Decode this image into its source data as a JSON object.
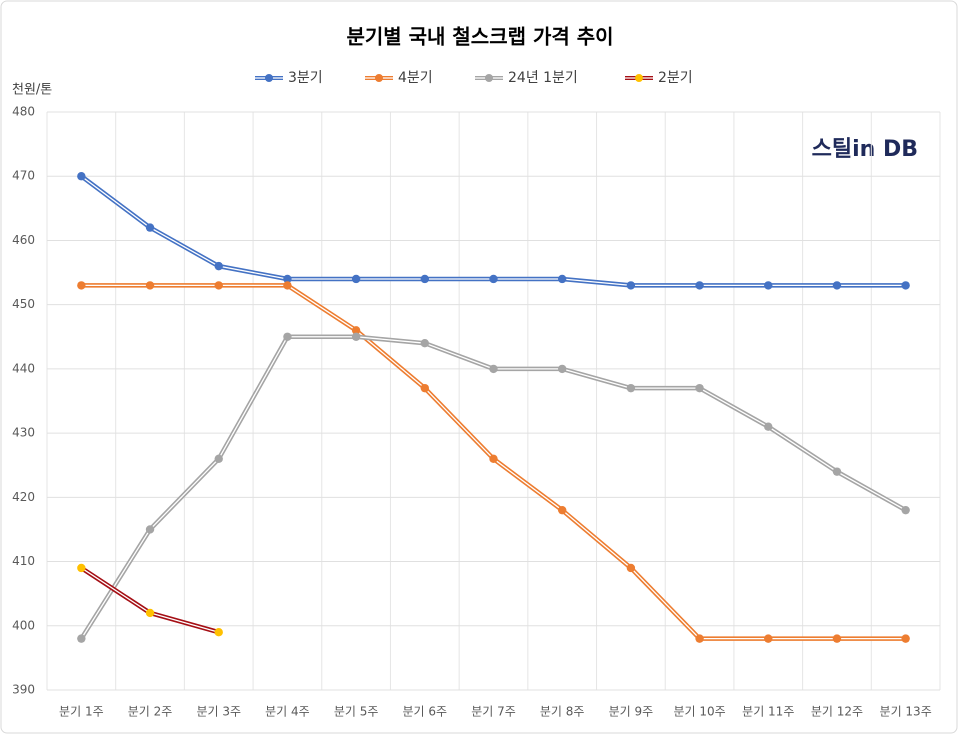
{
  "chart_data": {
    "type": "line",
    "title": "분기별 국내 철스크랩 가격 추이",
    "y_label": "천원/톤",
    "logo": "스틸in DB",
    "categories": [
      "분기 1주",
      "분기 2주",
      "분기 3주",
      "분기 4주",
      "분기 5주",
      "분기 6주",
      "분기 7주",
      "분기 8주",
      "분기 9주",
      "분기 10주",
      "분기 11주",
      "분기 12주",
      "분기 13주"
    ],
    "series": [
      {
        "name": "3분기",
        "color": "#4472c4",
        "marker_color": "#4472c4",
        "values": [
          470,
          462,
          456,
          454,
          454,
          454,
          454,
          454,
          453,
          453,
          453,
          453,
          453
        ]
      },
      {
        "name": "4분기",
        "color": "#ed7d31",
        "marker_color": "#ed7d31",
        "values": [
          453,
          453,
          453,
          453,
          446,
          437,
          426,
          418,
          409,
          398,
          398,
          398,
          398
        ]
      },
      {
        "name": "24년 1분기",
        "color": "#a5a5a5",
        "marker_color": "#a5a5a5",
        "values": [
          398,
          415,
          426,
          445,
          445,
          444,
          440,
          440,
          437,
          437,
          431,
          424,
          418
        ]
      },
      {
        "name": "2분기",
        "color": "#a50f15",
        "marker_color": "#ffc000",
        "values": [
          409,
          402,
          399,
          null,
          null,
          null,
          null,
          null,
          null,
          null,
          null,
          null,
          null
        ]
      }
    ],
    "ylim": [
      390,
      480
    ],
    "yticks": [
      390,
      400,
      410,
      420,
      430,
      440,
      450,
      460,
      470,
      480
    ],
    "grid": true
  }
}
